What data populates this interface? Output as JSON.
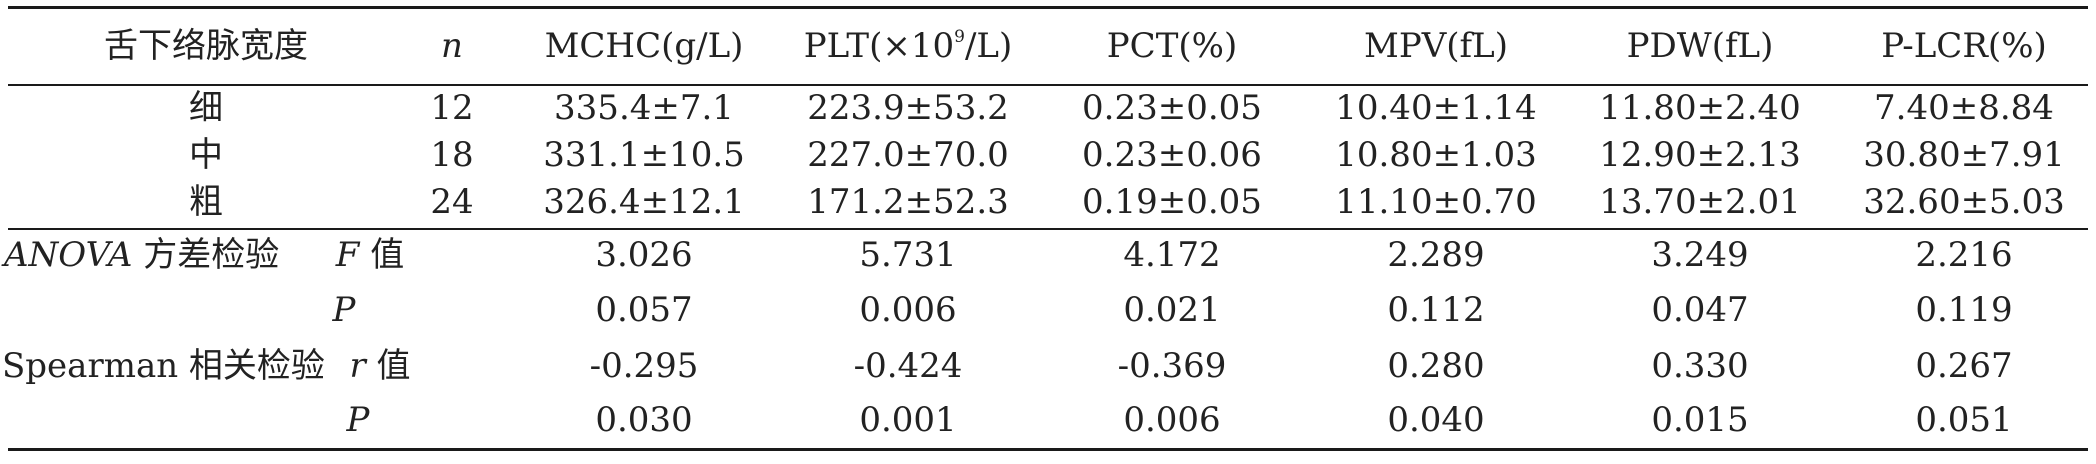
{
  "table": {
    "header": {
      "col0": "舌下络脉宽度",
      "n": "n",
      "mchc": "MCHC(g/L)",
      "plt_pre": "PLT(×10",
      "plt_sup": "9",
      "plt_post": "/L)",
      "pct": "PCT(%)",
      "mpv": "MPV(fL)",
      "pdw": "PDW(fL)",
      "plcr": "P-LCR(%)"
    },
    "groups": [
      {
        "label": "细",
        "n": "12",
        "mchc": "335.4±7.1",
        "plt": "223.9±53.2",
        "pct": "0.23±0.05",
        "mpv": "10.40±1.14",
        "pdw": "11.80±2.40",
        "plcr": "7.40±8.84"
      },
      {
        "label": "中",
        "n": "18",
        "mchc": "331.1±10.5",
        "plt": "227.0±70.0",
        "pct": "0.23±0.06",
        "mpv": "10.80±1.03",
        "pdw": "12.90±2.13",
        "plcr": "30.80±7.91"
      },
      {
        "label": "粗",
        "n": "24",
        "mchc": "326.4±12.1",
        "plt": "171.2±52.3",
        "pct": "0.19±0.05",
        "mpv": "11.10±0.70",
        "pdw": "13.70±2.01",
        "plcr": "32.60±5.03"
      }
    ],
    "anova": {
      "label_latin": "ANOVA",
      "label_cn": " 方差检验",
      "f_sym": "F",
      "f_cn": " 值",
      "f_values": [
        "3.026",
        "5.731",
        "4.172",
        "2.289",
        "3.249",
        "2.216"
      ],
      "p_sym": "P",
      "p_values": [
        "0.057",
        "0.006",
        "0.021",
        "0.112",
        "0.047",
        "0.119"
      ]
    },
    "spearman": {
      "label": "Spearman 相关检验",
      "r_sym": "r",
      "r_cn": " 值",
      "r_values": [
        "-0.295",
        "-0.424",
        "-0.369",
        "0.280",
        "0.330",
        "0.267"
      ],
      "p_sym": "P",
      "p_values": [
        "0.030",
        "0.001",
        "0.006",
        "0.040",
        "0.015",
        "0.051"
      ]
    }
  }
}
